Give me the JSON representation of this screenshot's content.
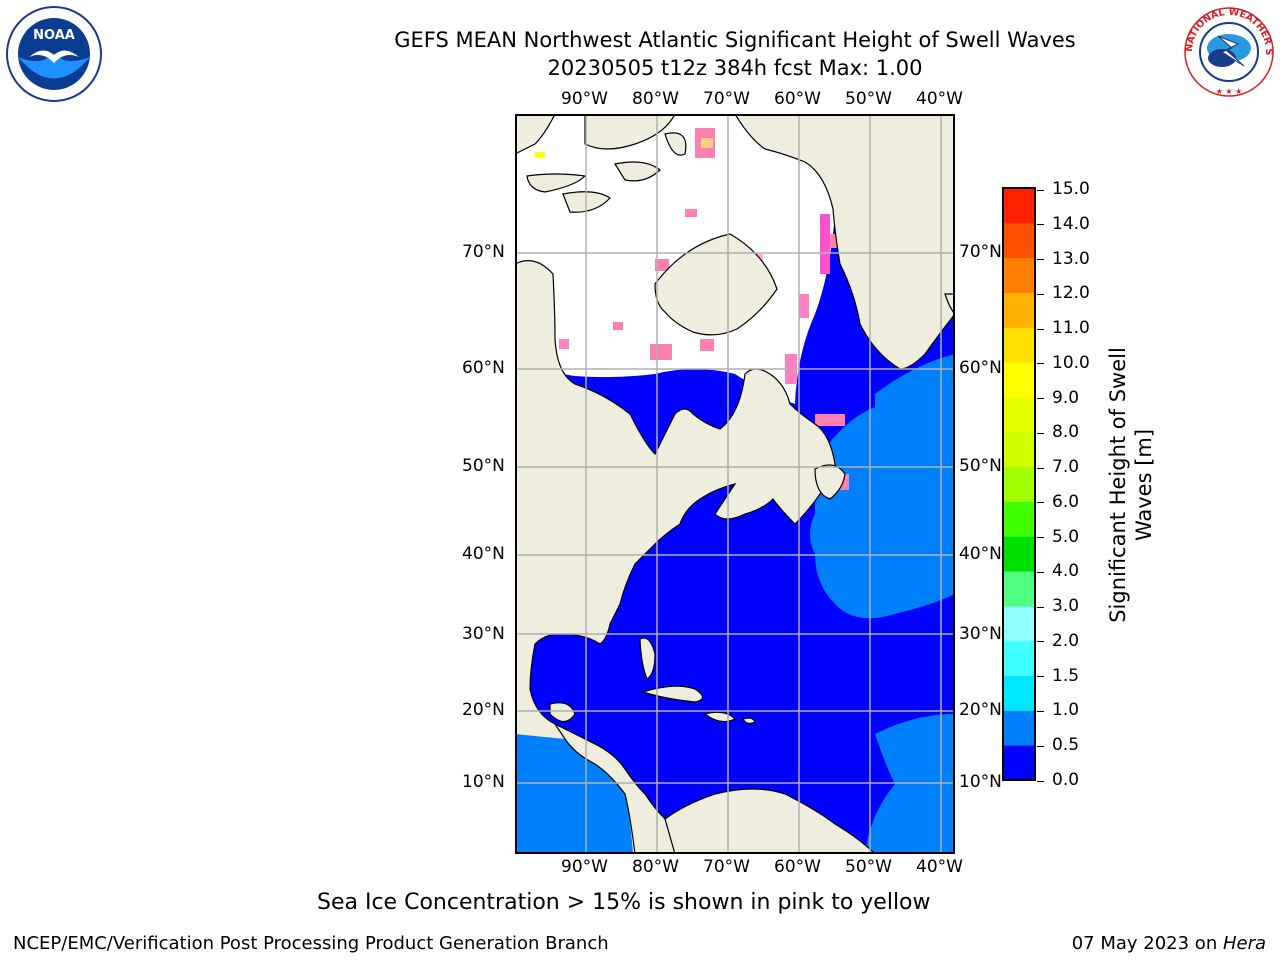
{
  "title": {
    "line1": "GEFS MEAN Northwest Atlantic Significant Height of Swell Waves",
    "line2": "20230505 t12z 384h fcst   Max: 1.00"
  },
  "logos": {
    "noaa": {
      "text": "NOAA",
      "ring_text": "NATIONAL OCEANIC AND ATMOSPHERIC ADMINISTRATION · U.S. DEPARTMENT OF COMMERCE"
    },
    "nws": {
      "ring_text": "NATIONAL WEATHER SERVICE"
    }
  },
  "map": {
    "lon_ticks": [
      "90°W",
      "80°W",
      "70°W",
      "60°W",
      "50°W",
      "40°W"
    ],
    "lat_ticks": [
      "70°N",
      "60°N",
      "50°N",
      "40°N",
      "30°N",
      "20°N",
      "10°N"
    ],
    "region": "Northwest Atlantic",
    "colors": {
      "land": "#efedde",
      "sea_low": "#0000ff",
      "sea_mid": "#0080ff",
      "ice": "#ffffff",
      "grid": "#b0b0b0"
    }
  },
  "colorbar": {
    "label": "Significant Height of Swell Waves [m]",
    "label_line1": "Significant Height of Swell",
    "label_line2": "Waves [m]",
    "ticks": [
      "15.0",
      "14.0",
      "13.0",
      "12.0",
      "11.0",
      "10.0",
      "9.0",
      "8.0",
      "7.0",
      "6.0",
      "5.0",
      "4.0",
      "3.0",
      "2.0",
      "1.5",
      "1.0",
      "0.5",
      "0.0"
    ],
    "colors": [
      "#0000ff",
      "#0080ff",
      "#00e8ff",
      "#40ffff",
      "#90ffff",
      "#50ff80",
      "#00e000",
      "#40ff00",
      "#a0ff00",
      "#d0ff00",
      "#e8ff00",
      "#ffff00",
      "#ffe000",
      "#ffb000",
      "#ff8000",
      "#ff5000",
      "#ff2000"
    ]
  },
  "caption": "Sea Ice Concentration > 15% is shown in pink to yellow",
  "footer": {
    "left": "NCEP/EMC/Verification Post Processing Product Generation Branch",
    "date": "07 May 2023 on ",
    "machine": "Hera"
  }
}
